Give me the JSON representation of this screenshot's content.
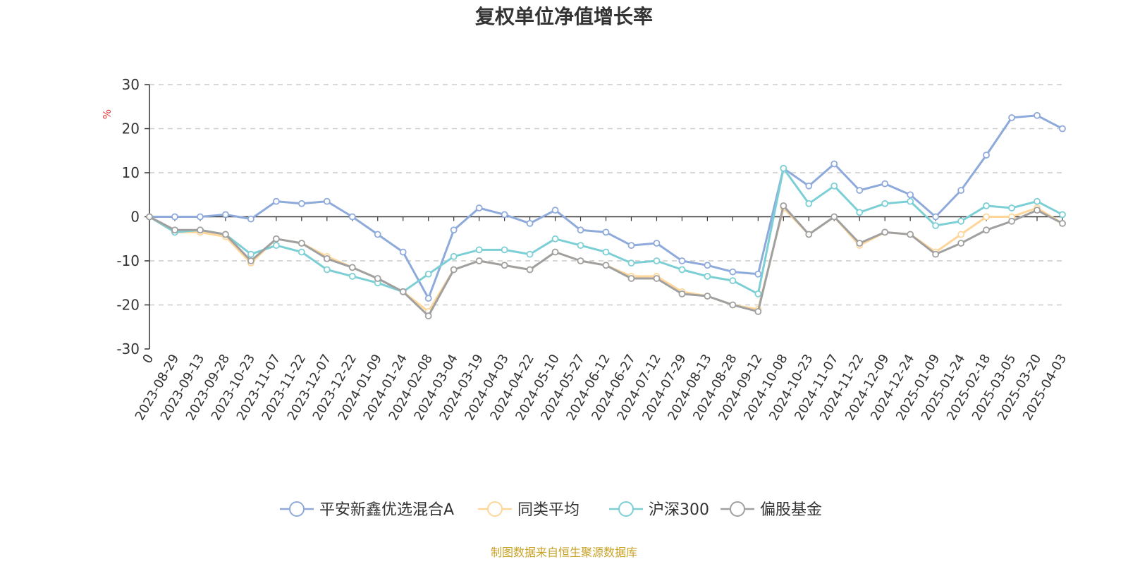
{
  "chart_data": {
    "type": "line",
    "title": "复权单位净值增长率",
    "ylabel": "%",
    "ylim": [
      -30,
      30
    ],
    "yticks": [
      "30",
      "20",
      "10",
      "0",
      "-10",
      "-20",
      "-30"
    ],
    "grid": true,
    "legend_position": "bottom",
    "x": [
      "0",
      "2023-08-29",
      "2023-09-13",
      "2023-09-28",
      "2023-10-23",
      "2023-11-07",
      "2023-11-22",
      "2023-12-07",
      "2023-12-22",
      "2024-01-09",
      "2024-01-24",
      "2024-02-08",
      "2024-03-04",
      "2024-03-19",
      "2024-04-03",
      "2024-04-22",
      "2024-05-10",
      "2024-05-27",
      "2024-06-12",
      "2024-06-27",
      "2024-07-12",
      "2024-07-29",
      "2024-08-13",
      "2024-08-28",
      "2024-09-12",
      "2024-10-08",
      "2024-10-23",
      "2024-11-07",
      "2024-11-22",
      "2024-12-09",
      "2024-12-24",
      "2025-01-09",
      "2025-01-24",
      "2025-02-18",
      "2025-03-05",
      "2025-03-20",
      "2025-04-03"
    ],
    "series": [
      {
        "name": "平安新鑫优选混合A",
        "color": "#8eaadb",
        "values": [
          0,
          0,
          0,
          0.5,
          -0.5,
          3.5,
          3,
          3.5,
          0,
          -4,
          -8,
          -18.5,
          -3,
          2,
          0.5,
          -1.5,
          1.5,
          -3,
          -3.5,
          -6.5,
          -6,
          -10,
          -11,
          -12.5,
          -13,
          11,
          7,
          12,
          6,
          7.5,
          5,
          0,
          6,
          14,
          22.5,
          23,
          20
        ]
      },
      {
        "name": "同类平均",
        "color": "#ffd699",
        "values": [
          0,
          -3.5,
          -3.5,
          -4.5,
          -10.5,
          -5,
          -6,
          -9,
          -11.5,
          -14,
          -17,
          -21.5,
          -12,
          -10,
          -11,
          -12,
          -8,
          -10,
          -11,
          -13.5,
          -13.5,
          -17,
          -18,
          -20,
          -21,
          2,
          -4,
          0,
          -6.5,
          -3.5,
          -4,
          -8,
          -4,
          0,
          0,
          2,
          -1.5
        ]
      },
      {
        "name": "沪深300",
        "color": "#7dcfd6",
        "values": [
          0,
          -3.5,
          -3,
          -4,
          -8.5,
          -6.5,
          -8,
          -12,
          -13.5,
          -15,
          -17,
          -13,
          -9,
          -7.5,
          -7.5,
          -8.5,
          -5,
          -6.5,
          -8,
          -10.5,
          -10,
          -12,
          -13.5,
          -14.5,
          -17.5,
          11,
          3,
          7,
          1,
          3,
          3.5,
          -2,
          -1,
          2.5,
          2,
          3.5,
          0.5
        ]
      },
      {
        "name": "偏股基金",
        "color": "#a0a0a0",
        "values": [
          0,
          -3,
          -3,
          -4,
          -10,
          -5,
          -6,
          -9.5,
          -11.5,
          -14,
          -17,
          -22.5,
          -12,
          -10,
          -11,
          -12,
          -8,
          -10,
          -11,
          -14,
          -14,
          -17.5,
          -18,
          -20,
          -21.5,
          2.5,
          -4,
          0,
          -6,
          -3.5,
          -4,
          -8.5,
          -6,
          -3,
          -1,
          1.5,
          -1.5
        ]
      }
    ]
  },
  "source_text": "制图数据来自恒生聚源数据库"
}
